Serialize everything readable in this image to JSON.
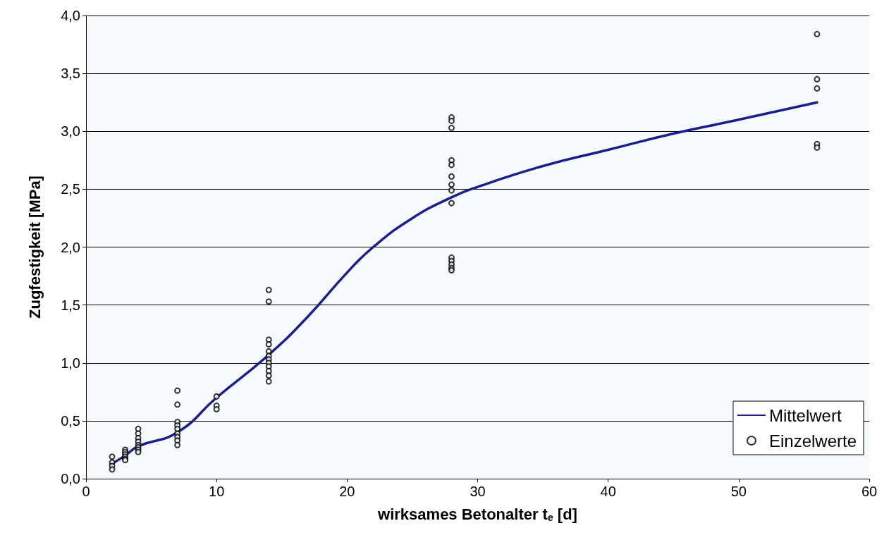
{
  "chart_data": {
    "type": "scatter",
    "xlabel": "wirksames Betonalter t$_{e}$ [d]",
    "ylabel": "Zugfestigkeit [MPa]",
    "xlim": [
      0,
      60
    ],
    "xticks": [
      0,
      10,
      20,
      30,
      40,
      50,
      60
    ],
    "ylim": [
      0,
      4
    ],
    "yticks": [
      {
        "value": 0,
        "label": "0,0"
      },
      {
        "value": 0.5,
        "label": "0,5"
      },
      {
        "value": 1,
        "label": "1,0"
      },
      {
        "value": 1.5,
        "label": "1,5"
      },
      {
        "value": 2,
        "label": "2,0"
      },
      {
        "value": 2.5,
        "label": "2,5"
      },
      {
        "value": 3,
        "label": "3,0"
      },
      {
        "value": 3.5,
        "label": "3,5"
      },
      {
        "value": 4,
        "label": "4,0"
      }
    ],
    "grid": "y",
    "legend": "bottom right",
    "series": [
      {
        "name": "Mittelwert",
        "type": "line",
        "color": "#1a1f8c",
        "marker": "none",
        "line_style": "solid",
        "x": [
          2,
          3,
          4,
          7,
          10,
          14,
          17,
          20,
          22,
          25,
          28,
          30,
          35,
          40,
          45,
          50,
          56
        ],
        "values": [
          0.13,
          0.2,
          0.28,
          0.4,
          0.7,
          1.07,
          1.4,
          1.78,
          2.0,
          2.25,
          2.43,
          2.52,
          2.7,
          2.84,
          2.98,
          3.1,
          3.25
        ]
      },
      {
        "name": "Einzelwerte",
        "color": "#000000",
        "marker": "circle",
        "x": [
          2,
          2,
          2,
          2,
          3,
          3,
          3,
          3,
          3,
          3,
          4,
          4,
          4,
          4,
          4,
          4,
          4,
          4,
          7,
          7,
          7,
          7,
          7,
          7,
          7,
          7,
          7,
          10,
          10,
          10,
          14,
          14,
          14,
          14,
          14,
          14,
          14,
          14,
          14,
          14,
          14,
          14,
          28,
          28,
          28,
          28,
          28,
          28,
          28,
          28,
          28,
          28,
          28,
          28,
          28,
          28,
          56,
          56,
          56,
          56,
          56
        ],
        "values": [
          0.19,
          0.14,
          0.11,
          0.08,
          0.25,
          0.23,
          0.21,
          0.19,
          0.17,
          0.16,
          0.43,
          0.39,
          0.35,
          0.32,
          0.29,
          0.27,
          0.25,
          0.23,
          0.76,
          0.64,
          0.49,
          0.46,
          0.43,
          0.39,
          0.36,
          0.33,
          0.29,
          0.71,
          0.63,
          0.6,
          1.63,
          1.53,
          1.2,
          1.16,
          1.1,
          1.06,
          1.03,
          1.0,
          0.97,
          0.93,
          0.89,
          0.84,
          3.12,
          3.09,
          3.03,
          2.75,
          2.71,
          2.61,
          2.54,
          2.49,
          2.38,
          1.91,
          1.88,
          1.85,
          1.82,
          1.8,
          3.84,
          3.45,
          3.37,
          2.89,
          2.86
        ]
      }
    ]
  }
}
